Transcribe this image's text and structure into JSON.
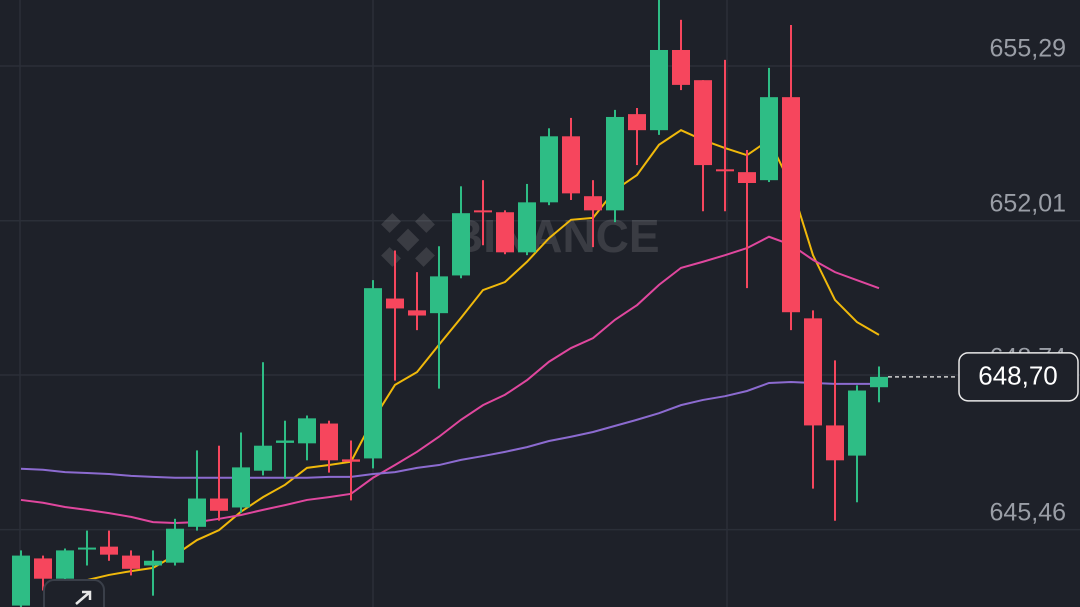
{
  "chart_data": {
    "type": "candlestick",
    "watermark": "BINANCE",
    "ylim": [
      643.82,
      656.69
    ],
    "yticks": [
      {
        "value": 655.29,
        "label": "655,29"
      },
      {
        "value": 652.01,
        "label": "652,01"
      },
      {
        "value": 648.74,
        "label": "648,74"
      },
      {
        "value": 645.46,
        "label": "645,46"
      }
    ],
    "grid": true,
    "up_color": "#2ebd85",
    "down_color": "#f6465d",
    "open": [
      643.85,
      644.85,
      644.42,
      645.04,
      645.1,
      644.91,
      644.7,
      644.76,
      645.52,
      646.12,
      645.93,
      646.71,
      647.3,
      647.29,
      647.71,
      646.95,
      646.97,
      650.36,
      650.11,
      650.05,
      650.85,
      652.23,
      652.19,
      651.34,
      652.4,
      653.8,
      652.53,
      652.23,
      654.27,
      653.93,
      655.63,
      654.99,
      653.1,
      653.04,
      652.87,
      654.63,
      649.94,
      647.67,
      647.03,
      648.48
    ],
    "high": [
      645.02,
      644.91,
      645.06,
      645.44,
      645.44,
      645.02,
      645.02,
      645.69,
      647.14,
      647.24,
      647.52,
      649.01,
      647.77,
      647.88,
      647.77,
      647.35,
      650.75,
      651.38,
      650.92,
      651.47,
      652.74,
      652.87,
      652.23,
      652.79,
      653.97,
      654.19,
      652.87,
      654.36,
      654.4,
      656.69,
      656.27,
      654.99,
      655.42,
      653.51,
      655.25,
      656.16,
      650.11,
      649.05,
      648.52,
      648.92
    ],
    "low": [
      643.8,
      644.17,
      643.95,
      644.7,
      644.8,
      644.49,
      644.06,
      644.7,
      645.44,
      645.65,
      645.82,
      646.61,
      646.54,
      646.93,
      646.67,
      646.08,
      646.76,
      648.62,
      649.69,
      648.45,
      650.79,
      651.49,
      651.3,
      651.28,
      652.34,
      652.45,
      651.45,
      651.98,
      653.19,
      653.83,
      654.78,
      652.21,
      652.21,
      650.58,
      652.83,
      649.69,
      646.33,
      645.65,
      646.04,
      648.16
    ],
    "close": [
      644.91,
      644.42,
      645.02,
      645.08,
      644.93,
      644.63,
      644.8,
      645.48,
      646.12,
      645.86,
      646.78,
      647.24,
      647.35,
      647.82,
      646.93,
      646.9,
      650.58,
      650.15,
      650.0,
      650.83,
      652.17,
      652.21,
      651.34,
      652.4,
      653.8,
      652.59,
      652.23,
      654.21,
      653.93,
      655.63,
      654.89,
      653.19,
      653.06,
      652.81,
      654.63,
      650.07,
      647.67,
      646.93,
      648.41,
      648.7
    ],
    "series": [
      {
        "color": "#f0b90b",
        "values": [
          null,
          null,
          644.29,
          644.39,
          644.5,
          644.58,
          644.65,
          644.92,
          645.24,
          645.45,
          645.84,
          646.15,
          646.41,
          646.77,
          646.83,
          646.9,
          647.79,
          648.53,
          648.8,
          649.38,
          649.95,
          650.54,
          650.71,
          651.14,
          651.64,
          652.03,
          652.07,
          652.66,
          652.98,
          653.62,
          653.93,
          653.72,
          653.55,
          653.4,
          653.72,
          652.77,
          651.28,
          650.33,
          649.86,
          649.59
        ]
      },
      {
        "color": "#e0479e",
        "values": [
          646.09,
          646.03,
          645.94,
          645.88,
          645.81,
          645.73,
          645.62,
          645.6,
          645.62,
          645.69,
          645.77,
          645.88,
          645.98,
          646.09,
          646.15,
          646.22,
          646.56,
          646.83,
          647.11,
          647.43,
          647.79,
          648.1,
          648.32,
          648.63,
          649.02,
          649.31,
          649.52,
          649.91,
          650.22,
          650.65,
          651.01,
          651.14,
          651.28,
          651.43,
          651.67,
          651.5,
          651.18,
          650.92,
          650.75,
          650.58
        ]
      },
      {
        "color": "#8c6bd0",
        "values": [
          646.75,
          646.73,
          646.68,
          646.66,
          646.64,
          646.6,
          646.58,
          646.56,
          646.56,
          646.56,
          646.56,
          646.56,
          646.56,
          646.56,
          646.58,
          646.58,
          646.64,
          646.68,
          646.77,
          646.83,
          646.94,
          647.02,
          647.11,
          647.21,
          647.34,
          647.43,
          647.53,
          647.66,
          647.79,
          647.93,
          648.1,
          648.21,
          648.29,
          648.4,
          648.57,
          648.59,
          648.57,
          648.55,
          648.55,
          648.55
        ]
      }
    ],
    "last_price": {
      "value": 648.7,
      "label": "648,70"
    }
  }
}
